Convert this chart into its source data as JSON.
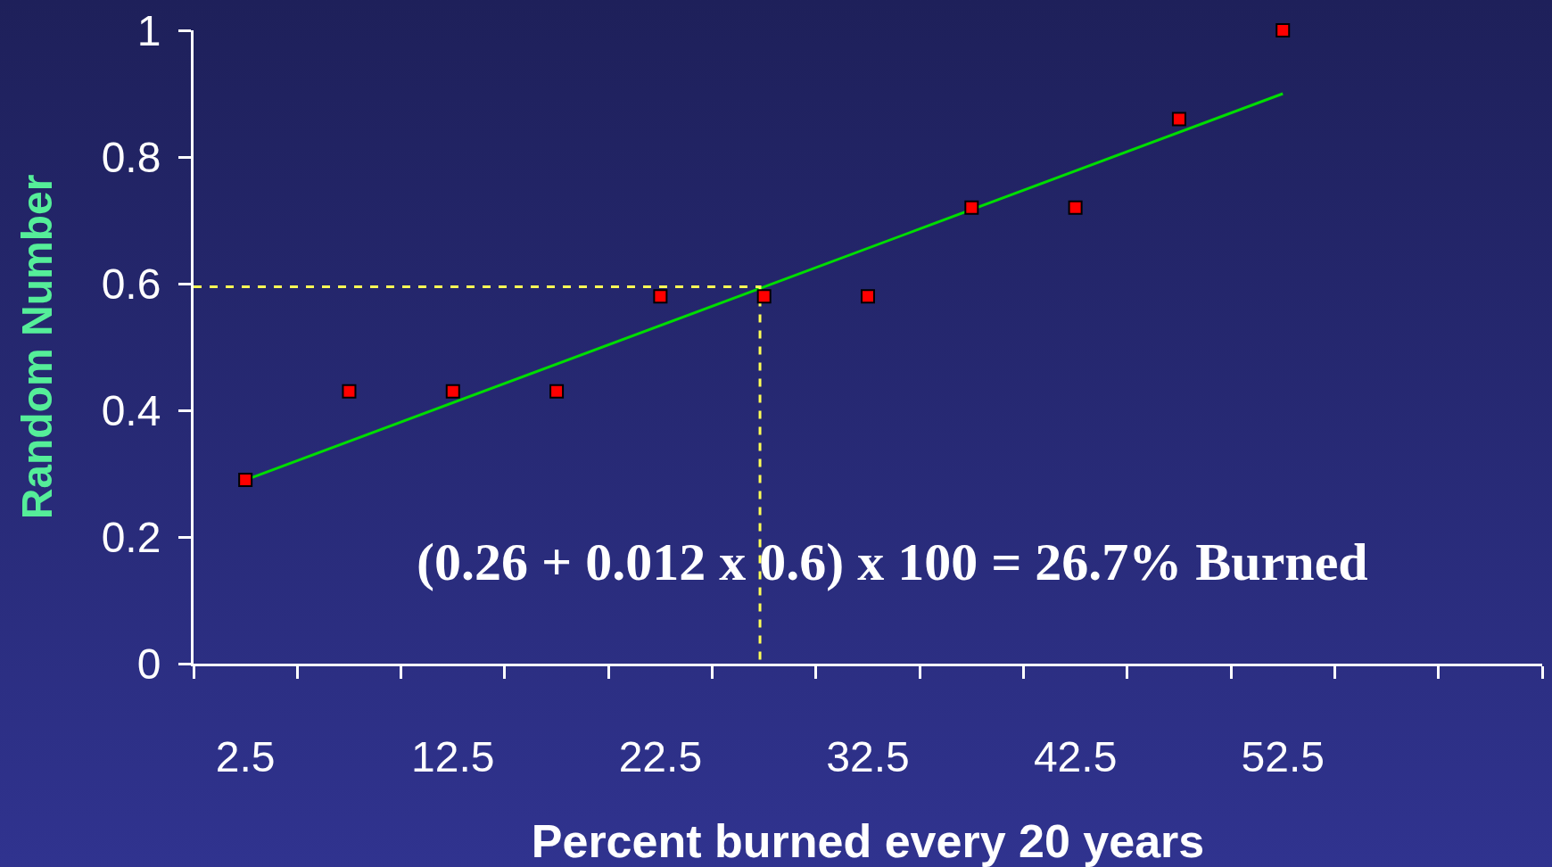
{
  "chart_data": {
    "type": "scatter",
    "xlabel": "Percent burned every 20 years",
    "ylabel": "Random Number",
    "x": [
      2.5,
      7.5,
      12.5,
      17.5,
      22.5,
      27.5,
      32.5,
      37.5,
      42.5,
      47.5,
      52.5
    ],
    "series": [
      {
        "color": "#ff0000",
        "marker": "square",
        "values": [
          0.29,
          0.43,
          0.43,
          0.43,
          0.58,
          0.58,
          0.58,
          0.72,
          0.72,
          0.86,
          1.0
        ]
      },
      {
        "type": "line",
        "color": "#00dd00",
        "marker": "none",
        "x": [
          2.5,
          52.5
        ],
        "values": [
          0.29,
          0.9
        ]
      },
      {
        "type": "line",
        "color": "#ffff55",
        "marker": "none",
        "line_style": "dashed",
        "x": [
          0,
          27.3,
          27.3
        ],
        "values": [
          0.595,
          0.595,
          0
        ]
      }
    ],
    "xlim": [
      0,
      65
    ],
    "xticks": [
      {
        "value": 0,
        "label": null
      },
      2.5,
      {
        "value": 5,
        "label": null
      },
      {
        "value": 10,
        "label": null
      },
      12.5,
      {
        "value": 15,
        "label": null
      },
      {
        "value": 20,
        "label": null
      },
      22.5,
      {
        "value": 25,
        "label": null
      },
      {
        "value": 30,
        "label": null
      },
      32.5,
      {
        "value": 35,
        "label": null
      },
      {
        "value": 40,
        "label": null
      },
      42.5,
      {
        "value": 45,
        "label": null
      },
      {
        "value": 50,
        "label": null
      },
      52.5,
      {
        "value": 55,
        "label": null
      },
      {
        "value": 60,
        "label": null
      },
      {
        "value": 65,
        "label": null
      }
    ],
    "ylim": [
      0,
      1
    ],
    "yticks": [
      0,
      0.2,
      0.4,
      0.6,
      0.8,
      1
    ],
    "annotations": [
      "(0.26 + 0.012 x 0.6) x 100 = 26.7% Burned"
    ],
    "grid": false
  }
}
